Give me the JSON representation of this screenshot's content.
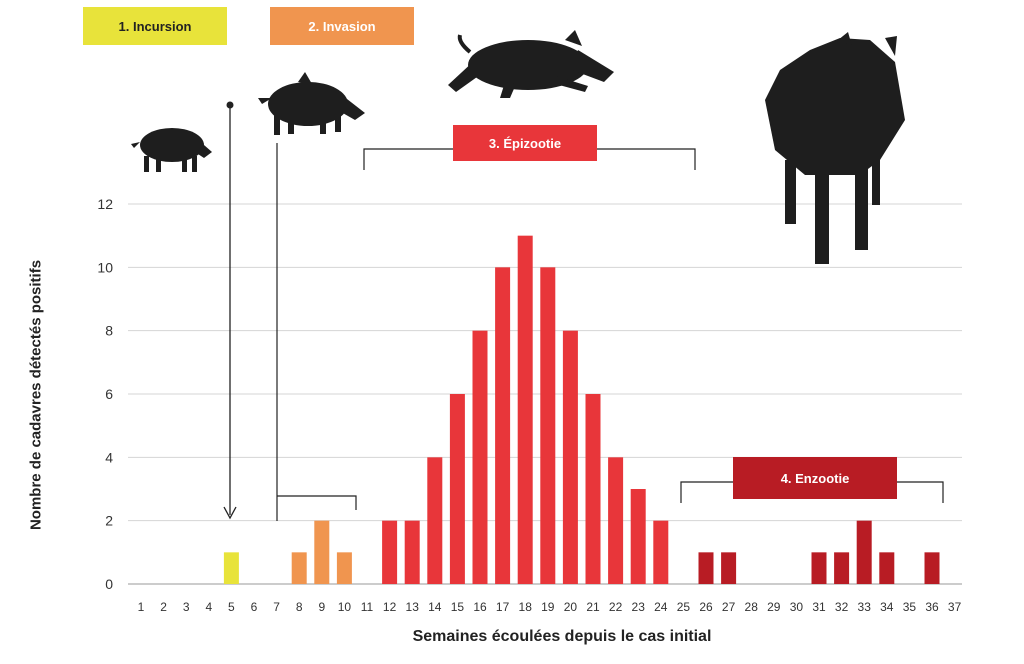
{
  "phases": [
    {
      "label": "1. Incursion",
      "color": "#e8e33a"
    },
    {
      "label": "2. Invasion",
      "color": "#f0954f"
    },
    {
      "label": "3. Épizootie",
      "color": "#e8363a"
    },
    {
      "label": "4. Enzootie",
      "color": "#b81c24"
    }
  ],
  "icons": [
    "wild-boar-piglet-icon",
    "wild-boar-young-icon",
    "wild-boar-running-icon",
    "wild-boar-adult-icon"
  ],
  "chart_data": {
    "type": "bar",
    "title": "",
    "xlabel": "Semaines écoulées depuis le cas initial",
    "ylabel": "Nombre de cadavres détectés positifs",
    "categories": [
      "1",
      "2",
      "3",
      "4",
      "5",
      "6",
      "7",
      "8",
      "9",
      "10",
      "11",
      "12",
      "13",
      "14",
      "15",
      "16",
      "17",
      "18",
      "19",
      "20",
      "21",
      "22",
      "23",
      "24",
      "25",
      "26",
      "27",
      "28",
      "29",
      "30",
      "31",
      "32",
      "33",
      "34",
      "35",
      "36",
      "37"
    ],
    "values": [
      0,
      0,
      0,
      0,
      1,
      0,
      0,
      1,
      2,
      1,
      0,
      2,
      2,
      4,
      6,
      8,
      10,
      11,
      10,
      8,
      6,
      4,
      3,
      2,
      0,
      1,
      1,
      0,
      0,
      0,
      1,
      1,
      2,
      1,
      0,
      1,
      0
    ],
    "bar_phase": [
      0,
      0,
      0,
      0,
      1,
      0,
      0,
      2,
      2,
      2,
      0,
      3,
      3,
      3,
      3,
      3,
      3,
      3,
      3,
      3,
      3,
      3,
      3,
      3,
      0,
      4,
      4,
      0,
      0,
      0,
      4,
      4,
      4,
      4,
      0,
      4,
      0
    ],
    "ylim": [
      0,
      12
    ],
    "yticks": [
      0,
      2,
      4,
      6,
      8,
      10,
      12
    ],
    "grid": true
  }
}
